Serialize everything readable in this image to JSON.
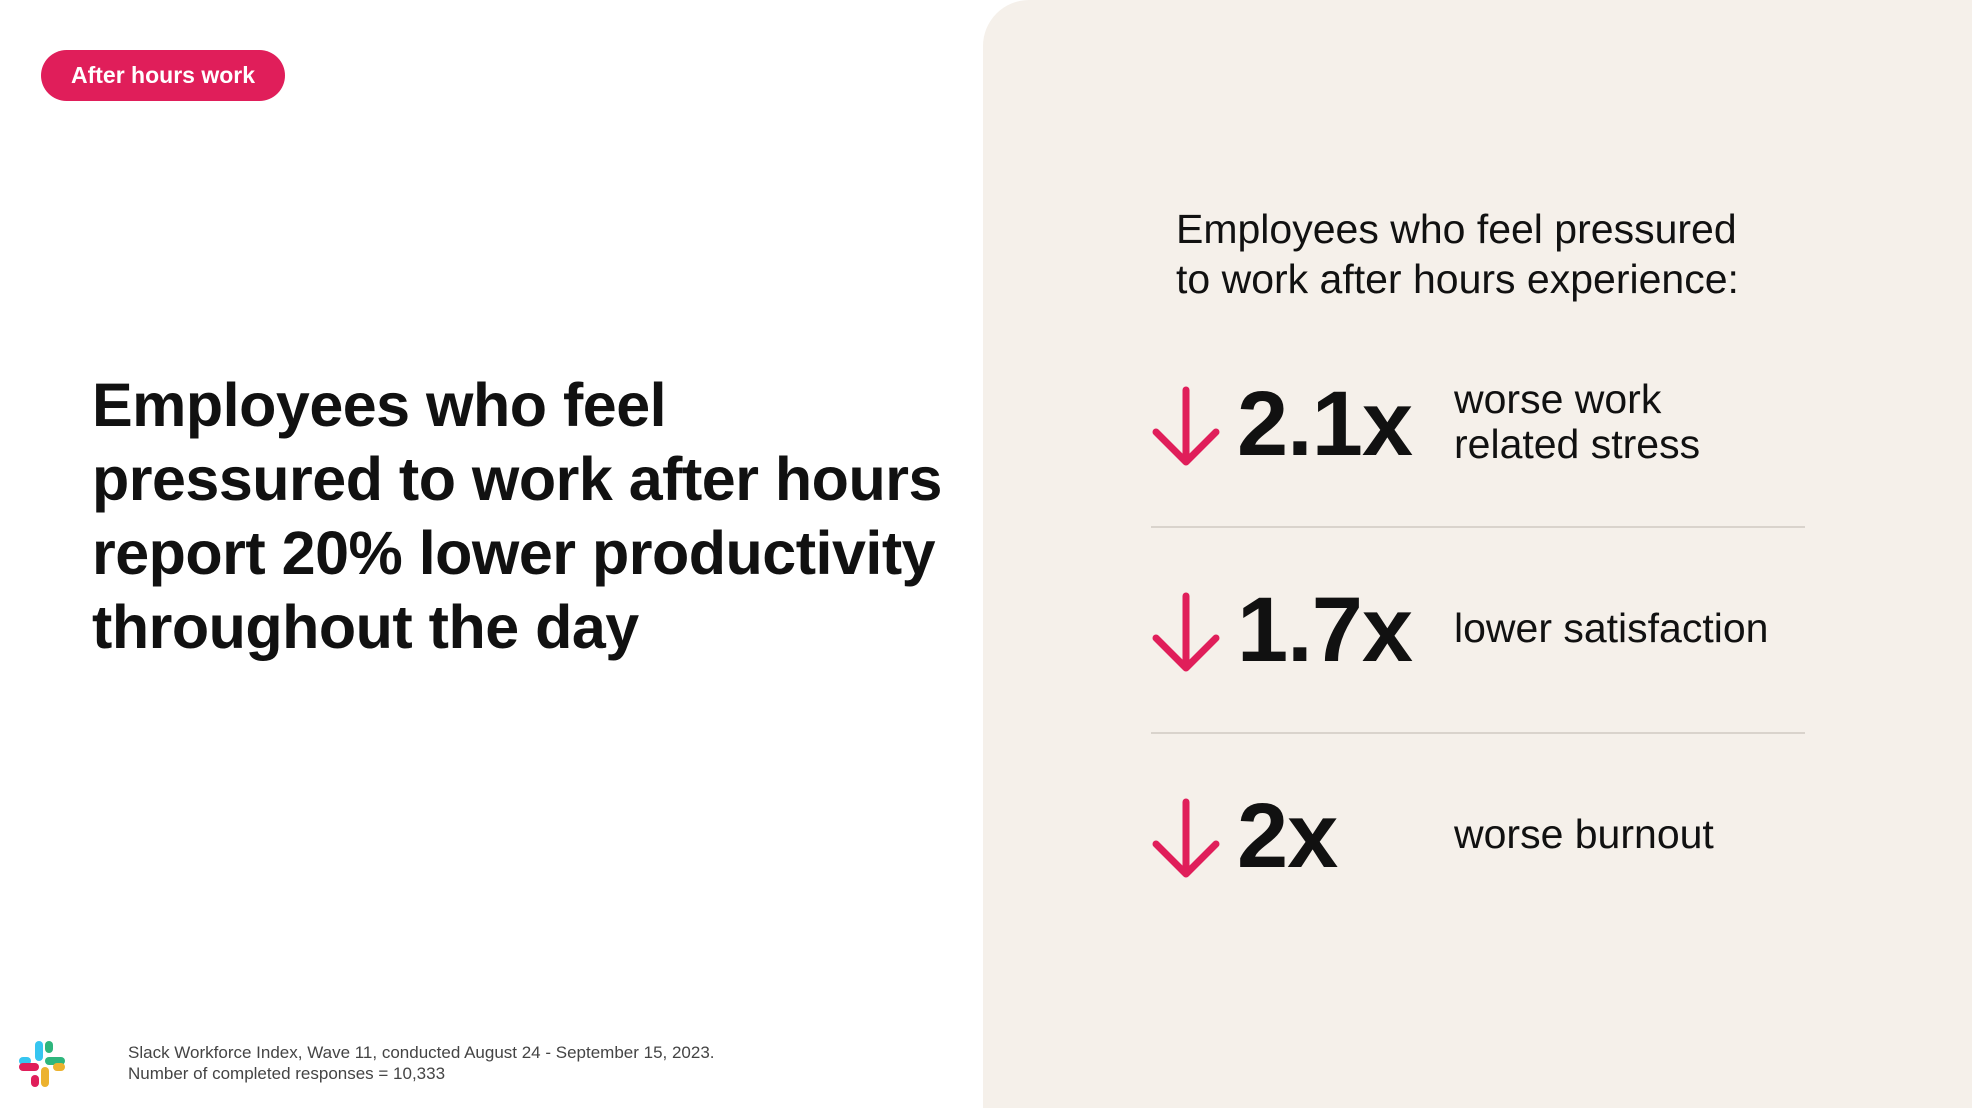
{
  "tag": {
    "label": "After hours work"
  },
  "headline": "Employees who feel pressured to work after hours report 20% lower productivity throughout the day",
  "panel": {
    "intro_lines": [
      "Employees who feel pressured",
      "to work after hours experience:"
    ],
    "stats": [
      {
        "value": "2.1x",
        "desc_lines": [
          "worse work",
          "related stress"
        ],
        "icon": "arrow-down-icon"
      },
      {
        "value": "1.7x",
        "desc_lines": [
          "lower satisfaction"
        ],
        "icon": "arrow-down-icon"
      },
      {
        "value": "2x",
        "desc_lines": [
          "worse burnout"
        ],
        "icon": "arrow-down-icon"
      }
    ]
  },
  "source": {
    "lines": [
      "Slack Workforce Index, Wave 11, conducted August 24 - September 15, 2023.",
      "Number of completed responses = 10,333"
    ]
  },
  "logo": {
    "icon": "slack-logo-icon"
  },
  "colors": {
    "accent": "#e01e5a",
    "panel_bg": "#f5f0ea",
    "text": "#111111",
    "logo_blue": "#36c5f0",
    "logo_green": "#2eb67d",
    "logo_yellow": "#ecb22e",
    "logo_red": "#e01e5a"
  }
}
